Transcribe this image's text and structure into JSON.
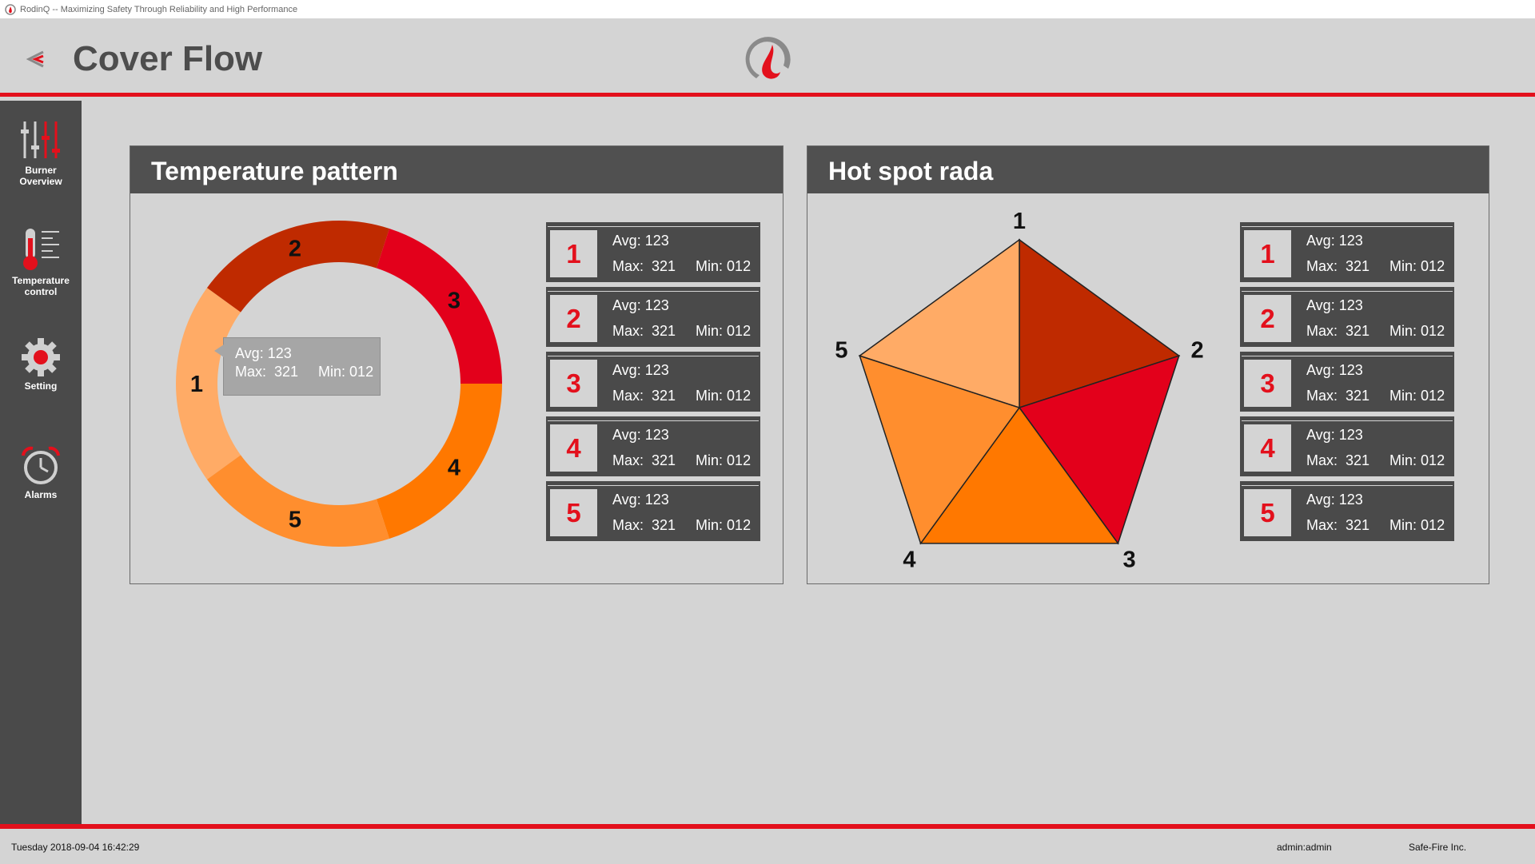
{
  "window": {
    "title": "RodinQ -- Maximizing Safety Through Reliability and High Performance"
  },
  "header": {
    "title": "Cover Flow"
  },
  "sidebar": {
    "items": [
      {
        "label_line1": "Burner",
        "label_line2": "Overview",
        "icon": "sliders-icon"
      },
      {
        "label_line1": "Temperature",
        "label_line2": "control",
        "icon": "thermometer-icon"
      },
      {
        "label_line1": "Setting",
        "label_line2": "",
        "icon": "gear-icon"
      },
      {
        "label_line1": "Alarms",
        "label_line2": "",
        "icon": "alarm-clock-icon"
      }
    ]
  },
  "temperature_panel": {
    "title": "Temperature pattern",
    "segments": [
      {
        "label": "1",
        "color": "#ffab66"
      },
      {
        "label": "2",
        "color": "#bf2a00"
      },
      {
        "label": "3",
        "color": "#e3001b"
      },
      {
        "label": "4",
        "color": "#ff7800"
      },
      {
        "label": "5",
        "color": "#ff8e2e"
      }
    ],
    "tooltip": {
      "avg": "Avg: 123",
      "max_min": "Max:  321     Min: 012"
    },
    "cards": [
      {
        "num": "1",
        "avg": "Avg: 123",
        "max_min": "Max:  321     Min: 012"
      },
      {
        "num": "2",
        "avg": "Avg: 123",
        "max_min": "Max:  321     Min: 012"
      },
      {
        "num": "3",
        "avg": "Avg: 123",
        "max_min": "Max:  321     Min: 012"
      },
      {
        "num": "4",
        "avg": "Avg: 123",
        "max_min": "Max:  321     Min: 012"
      },
      {
        "num": "5",
        "avg": "Avg: 123",
        "max_min": "Max:  321     Min: 012"
      }
    ]
  },
  "hotspot_panel": {
    "title": "Hot spot rada",
    "segments": [
      {
        "label": "1",
        "color": "#bf2a00"
      },
      {
        "label": "2",
        "color": "#e3001b"
      },
      {
        "label": "3",
        "color": "#ff7800"
      },
      {
        "label": "4",
        "color": "#ff8e2e"
      },
      {
        "label": "5",
        "color": "#ffab66"
      }
    ],
    "cards": [
      {
        "num": "1",
        "avg": "Avg: 123",
        "max_min": "Max:  321     Min: 012"
      },
      {
        "num": "2",
        "avg": "Avg: 123",
        "max_min": "Max:  321     Min: 012"
      },
      {
        "num": "3",
        "avg": "Avg: 123",
        "max_min": "Max:  321     Min: 012"
      },
      {
        "num": "4",
        "avg": "Avg: 123",
        "max_min": "Max:  321     Min: 012"
      },
      {
        "num": "5",
        "avg": "Avg: 123",
        "max_min": "Max:  321     Min: 012"
      }
    ]
  },
  "footer": {
    "datetime": "Tuesday 2018-09-04 16:42:29",
    "user": "admin:admin",
    "company": "Safe-Fire Inc."
  },
  "colors": {
    "accent": "#e3101c",
    "sidebar": "#4a4a4a",
    "background": "#d4d4d4"
  }
}
